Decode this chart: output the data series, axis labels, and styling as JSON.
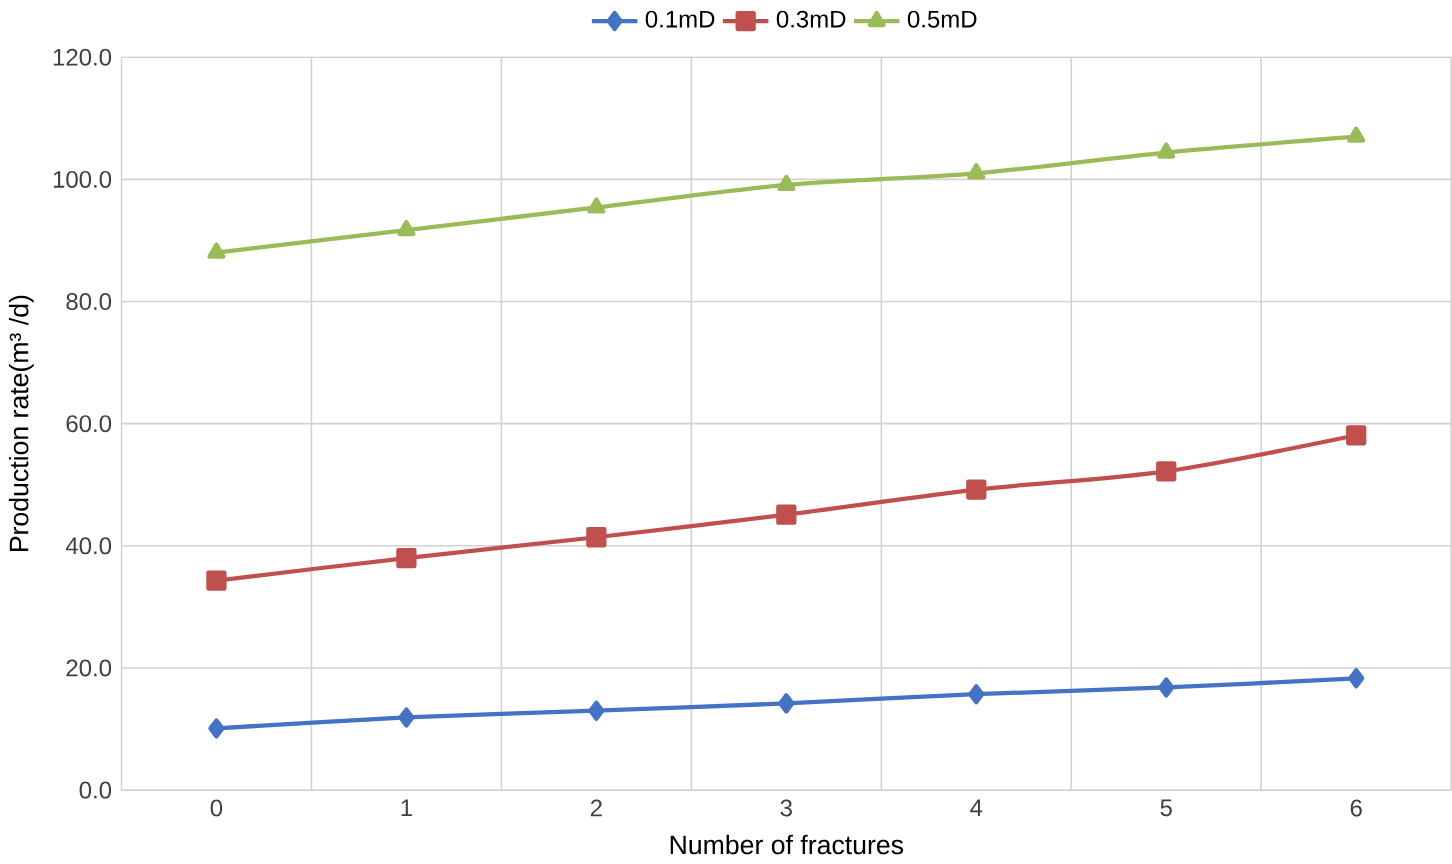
{
  "chart_data": {
    "type": "line",
    "xlabel": "Number of fractures",
    "ylabel": "Production rate(m³ /d)",
    "categories": [
      "0",
      "1",
      "2",
      "3",
      "4",
      "5",
      "6"
    ],
    "series": [
      {
        "name": "0.1mD",
        "color": "#4472c4",
        "marker": "diamond",
        "values": [
          10.1,
          11.9,
          13.0,
          14.2,
          15.7,
          16.8,
          18.3
        ]
      },
      {
        "name": "0.3mD",
        "color": "#c0504d",
        "marker": "square",
        "values": [
          34.3,
          38.0,
          41.4,
          45.1,
          49.2,
          52.2,
          58.1
        ]
      },
      {
        "name": "0.5mD",
        "color": "#9bbb59",
        "marker": "triangle",
        "values": [
          88.0,
          91.7,
          95.4,
          99.1,
          101.0,
          104.4,
          107.0
        ]
      }
    ],
    "ylim": [
      0,
      120
    ],
    "yticks": [
      {
        "value": 0,
        "label": "0.0"
      },
      {
        "value": 20,
        "label": "20.0"
      },
      {
        "value": 40,
        "label": "40.0"
      },
      {
        "value": 60,
        "label": "60.0"
      },
      {
        "value": 80,
        "label": "80.0"
      },
      {
        "value": 100,
        "label": "100.0"
      },
      {
        "value": 120,
        "label": "120.0"
      }
    ],
    "grid": true,
    "legend": "top"
  }
}
